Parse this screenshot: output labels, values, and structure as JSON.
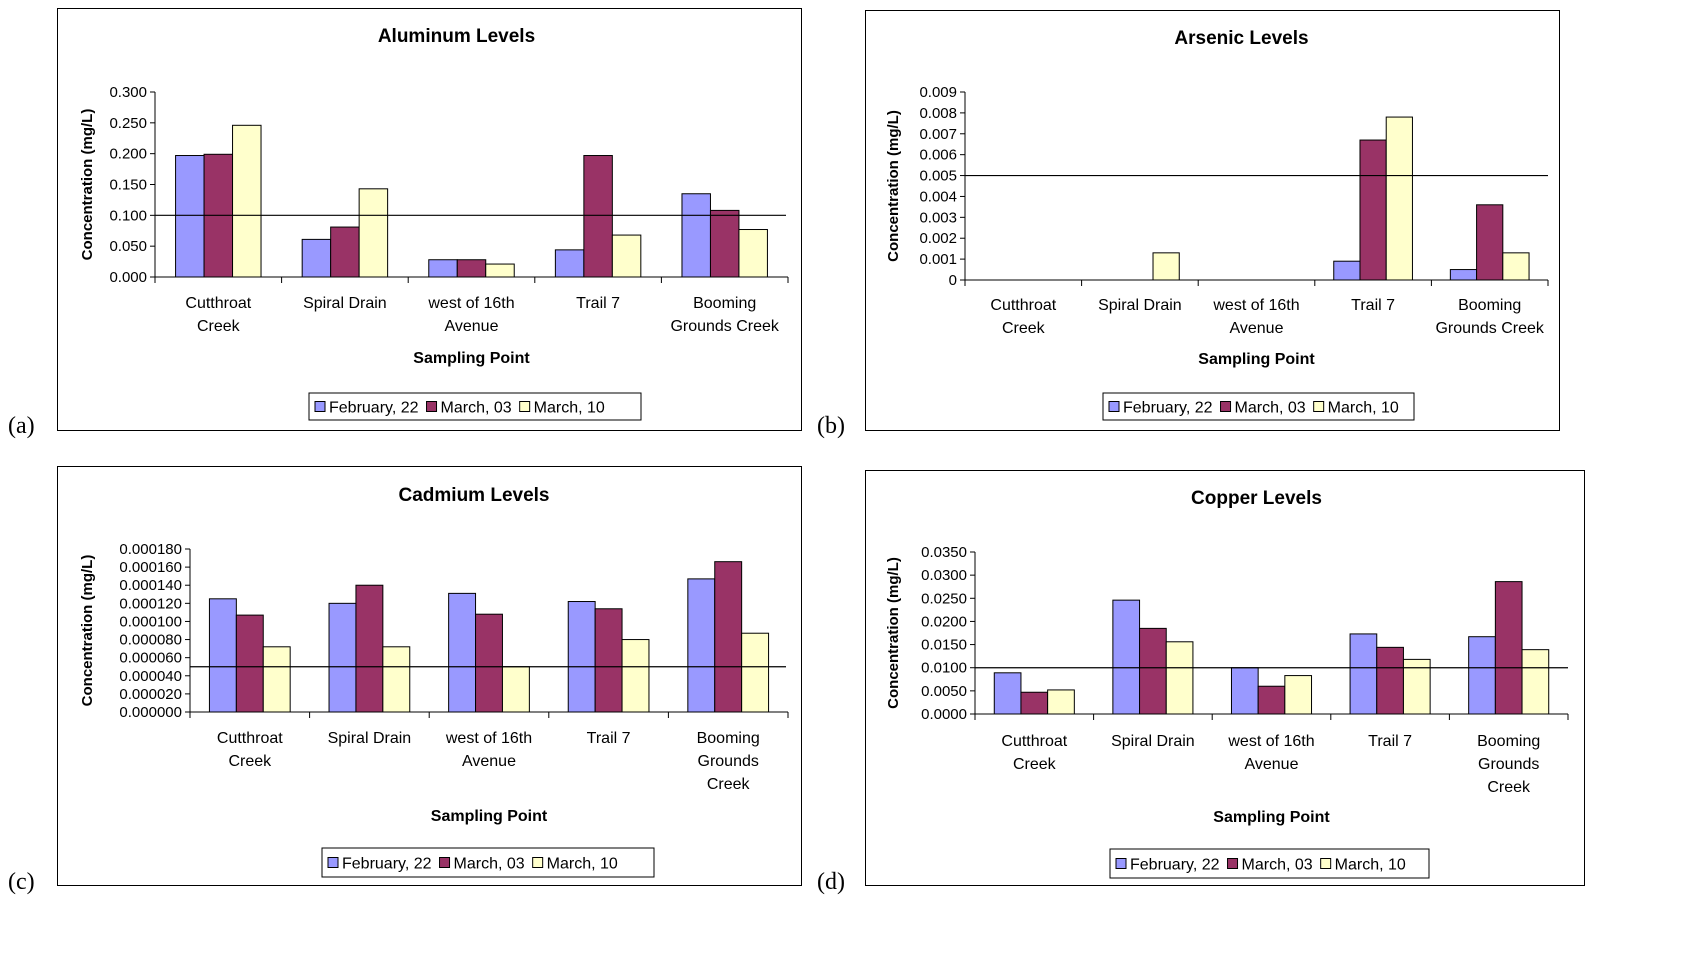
{
  "colors": {
    "feb22": "#9999FF",
    "mar03": "#993366",
    "mar10": "#FFFFCC",
    "axis": "#000000"
  },
  "chart_data": [
    {
      "panel_label": "(a)",
      "type": "bar",
      "title": "Aluminum Levels",
      "xlabel": "Sampling Point",
      "ylabel": "Concentration (mg/L)",
      "categories": [
        [
          "Cutthroat",
          "Creek"
        ],
        [
          "Spiral Drain"
        ],
        [
          "west of 16th",
          "Avenue"
        ],
        [
          "Trail 7"
        ],
        [
          "Booming",
          "Grounds Creek"
        ]
      ],
      "series": [
        {
          "name": "February, 22",
          "values": [
            0.197,
            0.061,
            0.028,
            0.044,
            0.135
          ]
        },
        {
          "name": "March, 03",
          "values": [
            0.199,
            0.081,
            0.028,
            0.197,
            0.108
          ]
        },
        {
          "name": "March, 10",
          "values": [
            0.246,
            0.143,
            0.021,
            0.068,
            0.077
          ]
        }
      ],
      "yticks": [
        "0.000",
        "0.050",
        "0.100",
        "0.150",
        "0.200",
        "0.250",
        "0.300"
      ],
      "ylim": [
        0,
        0.3
      ],
      "reference_line": 0.1,
      "legend_position": "bottom",
      "grid": false
    },
    {
      "panel_label": "(b)",
      "type": "bar",
      "title": "Arsenic Levels",
      "xlabel": "Sampling Point",
      "ylabel": "Concentration (mg/L)",
      "categories": [
        [
          "Cutthroat",
          "Creek"
        ],
        [
          "Spiral Drain"
        ],
        [
          "west of 16th",
          "Avenue"
        ],
        [
          "Trail 7"
        ],
        [
          "Booming",
          "Grounds Creek"
        ]
      ],
      "series": [
        {
          "name": "February, 22",
          "values": [
            0,
            0,
            0,
            0.0009,
            0.0005
          ]
        },
        {
          "name": "March, 03",
          "values": [
            0,
            0,
            0,
            0.0067,
            0.0036
          ]
        },
        {
          "name": "March, 10",
          "values": [
            0,
            0.0013,
            0,
            0.0078,
            0.0013
          ]
        }
      ],
      "yticks": [
        "0",
        "0.001",
        "0.002",
        "0.003",
        "0.004",
        "0.005",
        "0.006",
        "0.007",
        "0.008",
        "0.009"
      ],
      "ylim": [
        0,
        0.009
      ],
      "reference_line": 0.005,
      "legend_position": "bottom",
      "grid": false
    },
    {
      "panel_label": "(c)",
      "type": "bar",
      "title": "Cadmium Levels",
      "xlabel": "Sampling Point",
      "ylabel": "Concentration (mg/L)",
      "categories": [
        [
          "Cutthroat",
          "Creek"
        ],
        [
          "Spiral Drain"
        ],
        [
          "west of 16th",
          "Avenue"
        ],
        [
          "Trail 7"
        ],
        [
          "Booming",
          "Grounds",
          "Creek"
        ]
      ],
      "series": [
        {
          "name": "February, 22",
          "values": [
            0.000125,
            0.00012,
            0.000131,
            0.000122,
            0.000147
          ]
        },
        {
          "name": "March, 03",
          "values": [
            0.000107,
            0.00014,
            0.000108,
            0.000114,
            0.000166
          ]
        },
        {
          "name": "March, 10",
          "values": [
            7.2e-05,
            7.2e-05,
            5e-05,
            8e-05,
            8.7e-05
          ]
        }
      ],
      "yticks": [
        "0.000000",
        "0.000020",
        "0.000040",
        "0.000060",
        "0.000080",
        "0.000100",
        "0.000120",
        "0.000140",
        "0.000160",
        "0.000180"
      ],
      "ylim": [
        0,
        0.00018
      ],
      "reference_line": 5e-05,
      "legend_position": "bottom",
      "grid": false
    },
    {
      "panel_label": "(d)",
      "type": "bar",
      "title": "Copper Levels",
      "xlabel": "Sampling Point",
      "ylabel": "Concentration (mg/L)",
      "categories": [
        [
          "Cutthroat",
          "Creek"
        ],
        [
          "Spiral Drain"
        ],
        [
          "west of 16th",
          "Avenue"
        ],
        [
          "Trail 7"
        ],
        [
          "Booming",
          "Grounds",
          "Creek"
        ]
      ],
      "series": [
        {
          "name": "February, 22",
          "values": [
            0.0089,
            0.0246,
            0.01,
            0.0173,
            0.0167
          ]
        },
        {
          "name": "March, 03",
          "values": [
            0.0047,
            0.0185,
            0.006,
            0.0144,
            0.0286
          ]
        },
        {
          "name": "March, 10",
          "values": [
            0.0052,
            0.0156,
            0.0083,
            0.0118,
            0.0139
          ]
        }
      ],
      "yticks": [
        "0.0000",
        "0.0050",
        "0.0100",
        "0.0150",
        "0.0200",
        "0.0250",
        "0.0300",
        "0.0350"
      ],
      "ylim": [
        0,
        0.035
      ],
      "reference_line": 0.01,
      "legend_position": "bottom",
      "grid": false
    }
  ]
}
